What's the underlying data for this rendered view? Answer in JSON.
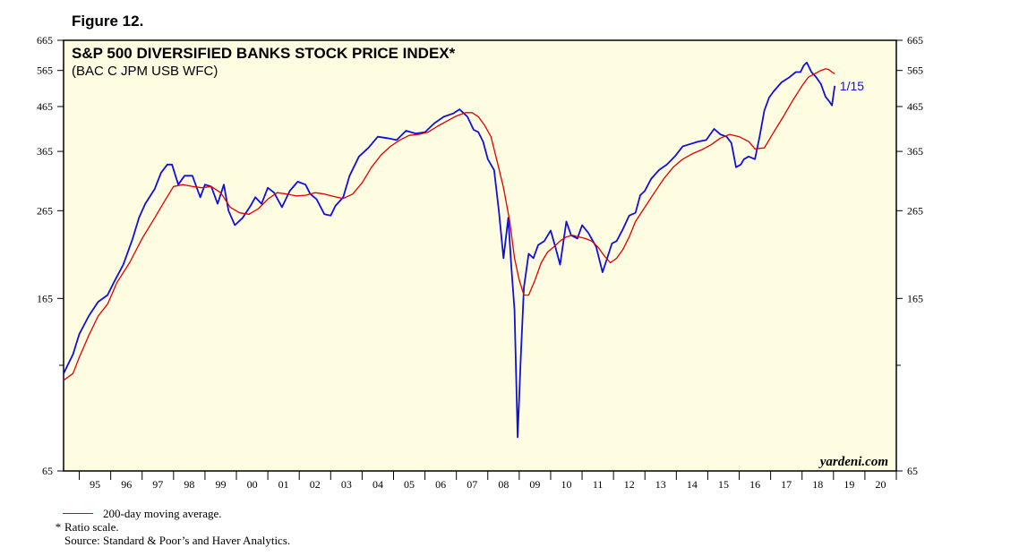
{
  "figure_label": "Figure 12.",
  "chart_data": {
    "type": "line",
    "title": "S&P 500 DIVERSIFIED BANKS STOCK PRICE INDEX*",
    "subtitle": "(BAC C JPM USB WFC)",
    "y_scale": "log",
    "ylim": [
      65,
      665
    ],
    "y_ticks": [
      65,
      165,
      265,
      365,
      465,
      565,
      665
    ],
    "y_minor_ticks": [
      115
    ],
    "xlim": [
      1994.5,
      2021.0
    ],
    "x_tick_labels": [
      "95",
      "96",
      "97",
      "98",
      "99",
      "00",
      "01",
      "02",
      "03",
      "04",
      "05",
      "06",
      "07",
      "08",
      "09",
      "10",
      "11",
      "12",
      "13",
      "14",
      "15",
      "16",
      "17",
      "18",
      "19",
      "20"
    ],
    "grid": false,
    "background": "#fffde1",
    "series": [
      {
        "name": "",
        "color": "#1010dd",
        "x": [
          1994.5,
          1994.8,
          1995.0,
          1995.3,
          1995.6,
          1995.9,
          1996.1,
          1996.4,
          1996.7,
          1996.9,
          1997.1,
          1997.4,
          1997.6,
          1997.8,
          1997.95,
          1998.15,
          1998.35,
          1998.6,
          1998.75,
          1998.85,
          1999.0,
          1999.2,
          1999.4,
          1999.6,
          1999.75,
          1999.95,
          2000.2,
          2000.45,
          2000.6,
          2000.8,
          2001.0,
          2001.2,
          2001.45,
          2001.7,
          2001.95,
          2002.2,
          2002.35,
          2002.55,
          2002.8,
          2003.0,
          2003.15,
          2003.4,
          2003.6,
          2003.9,
          2004.2,
          2004.5,
          2004.8,
          2005.1,
          2005.4,
          2005.7,
          2006.0,
          2006.3,
          2006.6,
          2006.9,
          2007.1,
          2007.35,
          2007.55,
          2007.7,
          2007.85,
          2008.0,
          2008.2,
          2008.35,
          2008.5,
          2008.65,
          2008.75,
          2008.85,
          2008.95,
          2009.05,
          2009.15,
          2009.3,
          2009.45,
          2009.6,
          2009.8,
          2010.0,
          2010.15,
          2010.3,
          2010.5,
          2010.65,
          2010.85,
          2011.0,
          2011.2,
          2011.45,
          2011.65,
          2011.8,
          2011.95,
          2012.1,
          2012.3,
          2012.5,
          2012.7,
          2012.85,
          2013.0,
          2013.2,
          2013.45,
          2013.7,
          2013.95,
          2014.2,
          2014.45,
          2014.7,
          2014.95,
          2015.2,
          2015.4,
          2015.6,
          2015.75,
          2015.9,
          2016.05,
          2016.15,
          2016.3,
          2016.5,
          2016.65,
          2016.8,
          2016.95,
          2017.1,
          2017.35,
          2017.6,
          2017.8,
          2017.95,
          2018.05,
          2018.15,
          2018.3,
          2018.45,
          2018.6,
          2018.75,
          2018.85,
          2018.95,
          2019.04
        ],
        "y": [
          110,
          122,
          136,
          150,
          162,
          168,
          180,
          198,
          228,
          255,
          275,
          298,
          325,
          340,
          340,
          305,
          320,
          320,
          298,
          285,
          305,
          302,
          275,
          305,
          265,
          245,
          255,
          272,
          285,
          275,
          300,
          292,
          270,
          295,
          310,
          305,
          290,
          282,
          260,
          258,
          272,
          285,
          320,
          355,
          372,
          395,
          392,
          388,
          408,
          402,
          405,
          425,
          440,
          448,
          458,
          440,
          410,
          405,
          385,
          350,
          330,
          265,
          205,
          255,
          195,
          155,
          78,
          120,
          175,
          210,
          205,
          220,
          225,
          238,
          218,
          198,
          250,
          232,
          228,
          245,
          235,
          218,
          190,
          205,
          222,
          225,
          240,
          258,
          262,
          288,
          295,
          315,
          330,
          340,
          355,
          375,
          380,
          385,
          388,
          412,
          400,
          395,
          382,
          335,
          340,
          350,
          355,
          350,
          395,
          455,
          488,
          505,
          530,
          545,
          560,
          560,
          580,
          590,
          560,
          545,
          525,
          490,
          480,
          468,
          520
        ]
      },
      {
        "name": "200-day moving average.",
        "color": "#e00000",
        "x": [
          1994.5,
          1994.8,
          1995.0,
          1995.3,
          1995.6,
          1995.9,
          1996.2,
          1996.6,
          1997.0,
          1997.4,
          1997.75,
          1998.0,
          1998.3,
          1998.6,
          1998.9,
          1999.2,
          1999.5,
          1999.8,
          2000.1,
          2000.4,
          2000.7,
          2001.0,
          2001.3,
          2001.6,
          2001.9,
          2002.2,
          2002.5,
          2002.8,
          2003.1,
          2003.4,
          2003.7,
          2004.0,
          2004.3,
          2004.6,
          2004.9,
          2005.2,
          2005.5,
          2005.8,
          2006.1,
          2006.4,
          2006.7,
          2007.0,
          2007.3,
          2007.5,
          2007.7,
          2007.9,
          2008.1,
          2008.3,
          2008.5,
          2008.7,
          2008.85,
          2009.0,
          2009.15,
          2009.3,
          2009.5,
          2009.7,
          2009.9,
          2010.1,
          2010.3,
          2010.5,
          2010.7,
          2010.9,
          2011.1,
          2011.3,
          2011.5,
          2011.7,
          2011.9,
          2012.1,
          2012.3,
          2012.5,
          2012.7,
          2013.0,
          2013.3,
          2013.6,
          2013.9,
          2014.2,
          2014.5,
          2014.8,
          2015.1,
          2015.4,
          2015.7,
          2016.0,
          2016.3,
          2016.5,
          2016.8,
          2017.1,
          2017.4,
          2017.7,
          2018.0,
          2018.2,
          2018.4,
          2018.6,
          2018.75,
          2018.85,
          2018.95,
          2019.04
        ],
        "y": [
          106,
          110,
          120,
          135,
          150,
          160,
          180,
          200,
          228,
          255,
          282,
          302,
          305,
          302,
          300,
          302,
          292,
          270,
          262,
          260,
          268,
          282,
          292,
          290,
          287,
          288,
          292,
          290,
          286,
          283,
          290,
          308,
          335,
          358,
          375,
          388,
          398,
          400,
          405,
          418,
          430,
          442,
          450,
          450,
          440,
          420,
          395,
          345,
          300,
          250,
          205,
          182,
          168,
          168,
          182,
          200,
          212,
          218,
          225,
          230,
          232,
          230,
          228,
          225,
          218,
          208,
          200,
          205,
          215,
          230,
          250,
          270,
          292,
          315,
          335,
          350,
          360,
          368,
          378,
          392,
          400,
          395,
          385,
          370,
          372,
          405,
          440,
          480,
          520,
          545,
          555,
          565,
          570,
          568,
          560,
          555
        ]
      }
    ],
    "annotations": [
      {
        "text": "1/15",
        "x": 2019.2,
        "y": 520
      },
      {
        "text": "yardeni.com",
        "position": "bottom-right"
      }
    ],
    "legend": {
      "position": "bottom-left",
      "entries": [
        "200-day moving average."
      ]
    },
    "notes": [
      "Ratio scale.",
      "Source: Standard & Poor’s and Haver Analytics."
    ]
  }
}
